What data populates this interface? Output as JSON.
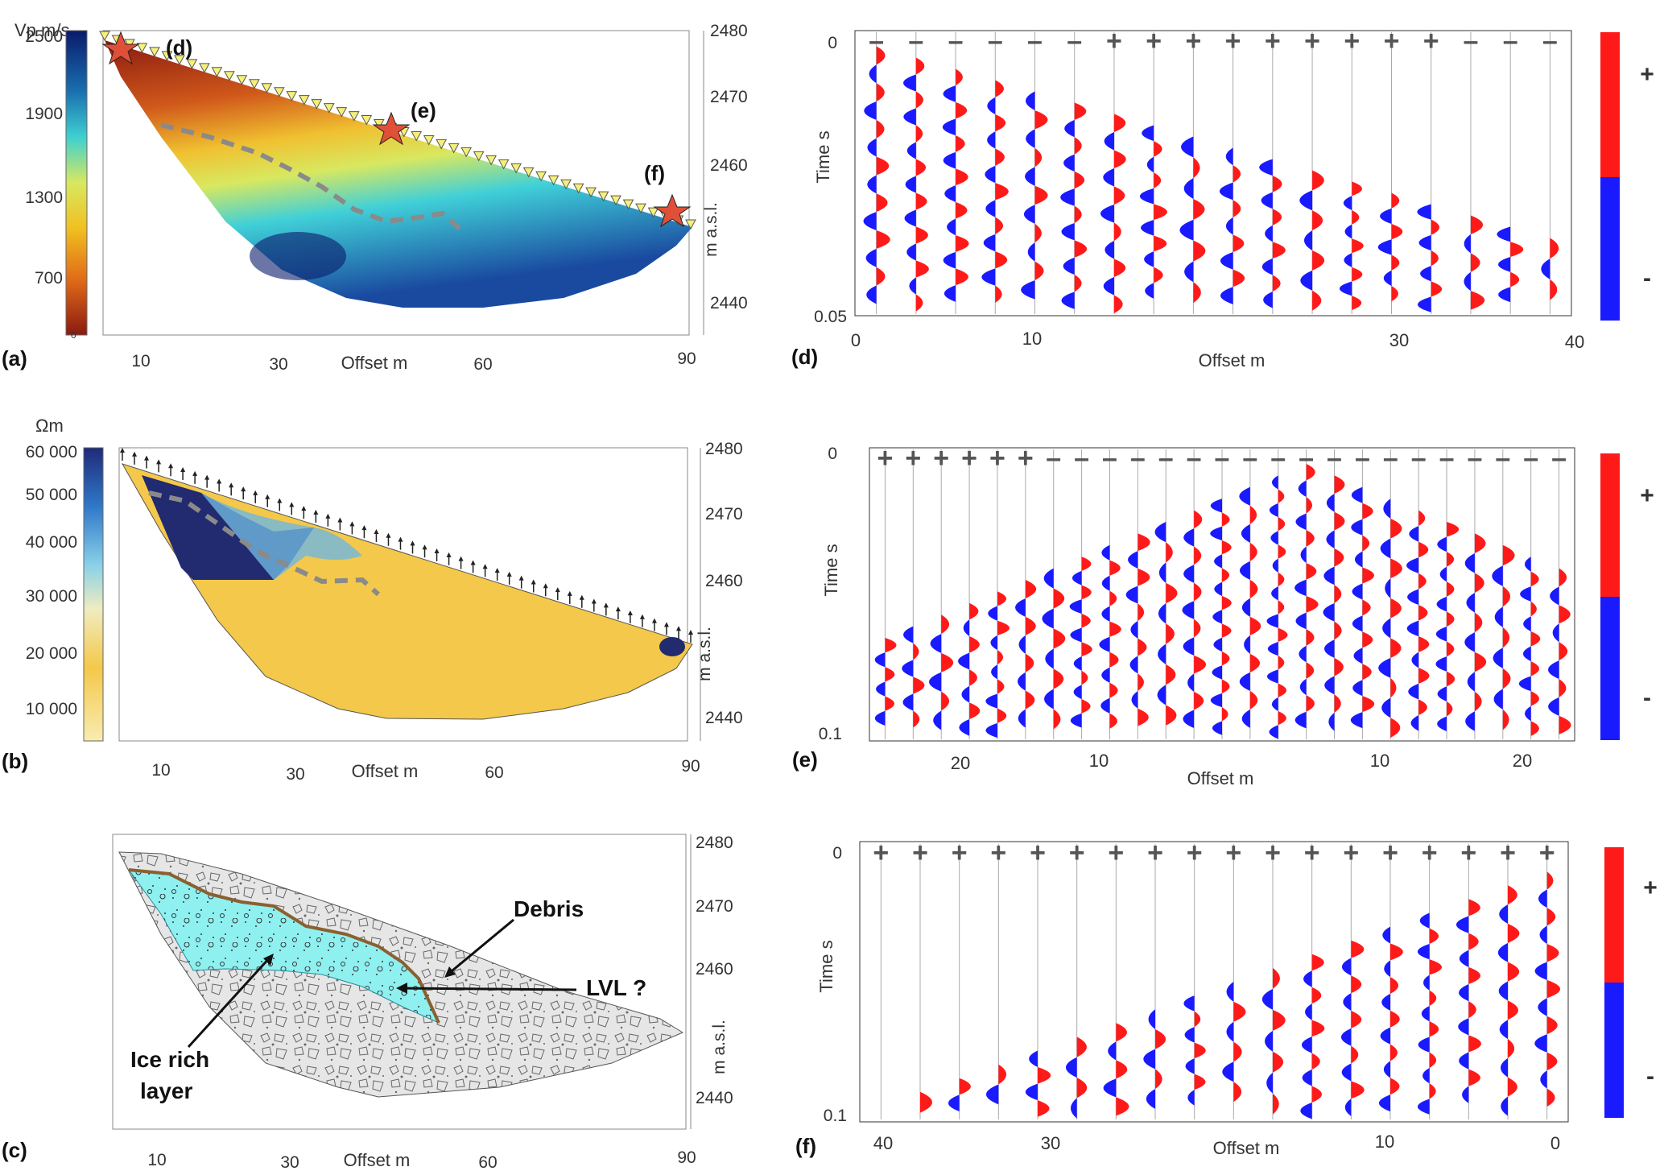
{
  "panels": {
    "a": {
      "label": "(a)",
      "cbar_title": "Vp m/s",
      "cbar_ticks": [
        "2500",
        "1900",
        "1300",
        "700",
        "0"
      ],
      "elev_ticks": [
        "2480",
        "2470",
        "2460",
        "2440"
      ],
      "elev_label": "m a.s.l.",
      "x_ticks": [
        "10",
        "30",
        "60",
        "90"
      ],
      "x_label": "Offset m",
      "markers": [
        "(d)",
        "(e)",
        "(f)"
      ]
    },
    "b": {
      "label": "(b)",
      "cbar_title": "Ωm",
      "cbar_ticks": [
        "60 000",
        "50 000",
        "40 000",
        "30 000",
        "20 000",
        "10 000"
      ],
      "elev_ticks": [
        "2480",
        "2470",
        "2460",
        "2440"
      ],
      "elev_label": "m a.s.l.",
      "x_ticks": [
        "10",
        "30",
        "60",
        "90"
      ],
      "x_label": "Offset m"
    },
    "c": {
      "label": "(c)",
      "elev_ticks": [
        "2480",
        "2470",
        "2460",
        "2440"
      ],
      "elev_label": "m a.s.l.",
      "x_ticks": [
        "10",
        "30",
        "60",
        "90"
      ],
      "x_label": "Offset m",
      "annotations": {
        "debris": "Debris",
        "lvl": "LVL ?",
        "ice_line1": "Ice rich",
        "ice_line2": "layer"
      }
    },
    "d": {
      "label": "(d)",
      "y_label": "Time s",
      "y_ticks": [
        "0",
        "0.05"
      ],
      "x_ticks": [
        "0",
        "10",
        "30",
        "40"
      ],
      "x_label": "Offset m",
      "polarity": [
        "-",
        "-",
        "-",
        "-",
        "-",
        "-",
        "+",
        "+",
        "+",
        "+",
        "+",
        "+",
        "+",
        "+",
        "+",
        "-",
        "-",
        "-"
      ],
      "legend_plus": "+",
      "legend_minus": "-"
    },
    "e": {
      "label": "(e)",
      "y_label": "Time s",
      "y_ticks": [
        "0",
        "0.1"
      ],
      "x_ticks": [
        "20",
        "10",
        "10",
        "20"
      ],
      "x_label": "Offset m",
      "polarity": [
        "+",
        "+",
        "+",
        "+",
        "+",
        "+",
        "-",
        "-",
        "-",
        "-",
        "-",
        "-",
        "-",
        "-",
        "-",
        "-",
        "-",
        "-",
        "-",
        "-",
        "-",
        "-",
        "-",
        "-",
        "-"
      ],
      "legend_plus": "+",
      "legend_minus": "-"
    },
    "f": {
      "label": "(f)",
      "y_label": "Time s",
      "y_ticks": [
        "0",
        "0.1"
      ],
      "x_ticks": [
        "40",
        "30",
        "10",
        "0"
      ],
      "x_label": "Offset m",
      "polarity": [
        "+",
        "+",
        "+",
        "+",
        "+",
        "+",
        "+",
        "+",
        "+",
        "+",
        "+",
        "+",
        "+",
        "+",
        "+",
        "+",
        "+",
        "+"
      ],
      "legend_plus": "+",
      "legend_minus": "-"
    }
  },
  "colors": {
    "positive": "#ff1a1a",
    "negative": "#1a1aff",
    "dashed": "#8a8a8a"
  }
}
